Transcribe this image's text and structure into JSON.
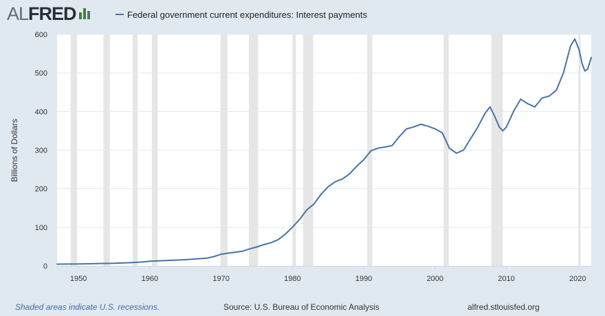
{
  "header": {
    "logo_left": "AL",
    "logo_right": "FRED",
    "logo_mark_icon": "fred-bar-chart-icon",
    "series_title": "Federal government current expenditures: Interest payments"
  },
  "footer": {
    "recession_note": "Shaded areas indicate U.S. recessions.",
    "source": "Source: U.S. Bureau of Economic Analysis",
    "site": "alfred.stlouisfed.org"
  },
  "colors": {
    "line": "#4572a7",
    "recession": "#e6e6e6",
    "gridline": "#e1e9f0",
    "plot_background": "#ffffff",
    "page_background": "#e1e9f0"
  },
  "chart_data": {
    "type": "line",
    "title": "Federal government current expenditures: Interest payments",
    "ylabel": "Billions of Dollars",
    "xlabel": "",
    "xlim": [
      1947,
      2021.9
    ],
    "ylim": [
      0,
      600
    ],
    "xticks": [
      "1950",
      "1960",
      "1970",
      "1980",
      "1990",
      "2000",
      "2010",
      "2020"
    ],
    "yticks": [
      "0",
      "100",
      "200",
      "300",
      "400",
      "500",
      "600"
    ],
    "grid": true,
    "recessions": [
      [
        1948.9,
        1949.8
      ],
      [
        1953.5,
        1954.4
      ],
      [
        1957.6,
        1958.3
      ],
      [
        1960.3,
        1961.1
      ],
      [
        1969.9,
        1970.9
      ],
      [
        1973.9,
        1975.2
      ],
      [
        1980.0,
        1980.5
      ],
      [
        1981.5,
        1982.9
      ],
      [
        1990.5,
        1991.2
      ],
      [
        2001.2,
        2001.9
      ],
      [
        2007.9,
        2009.5
      ],
      [
        2020.1,
        2020.4
      ]
    ],
    "series": [
      {
        "name": "Federal government current expenditures: Interest payments",
        "points": [
          [
            1947,
            4.5
          ],
          [
            1950,
            5
          ],
          [
            1955,
            6.5
          ],
          [
            1957,
            8
          ],
          [
            1958,
            9
          ],
          [
            1959,
            10
          ],
          [
            1960,
            12
          ],
          [
            1962,
            13.5
          ],
          [
            1965,
            16
          ],
          [
            1968,
            20
          ],
          [
            1969,
            24
          ],
          [
            1970,
            30
          ],
          [
            1971,
            33
          ],
          [
            1973,
            38
          ],
          [
            1974,
            44
          ],
          [
            1975,
            49
          ],
          [
            1976,
            55
          ],
          [
            1977,
            60
          ],
          [
            1978,
            68
          ],
          [
            1979,
            82
          ],
          [
            1980,
            100
          ],
          [
            1981,
            120
          ],
          [
            1982,
            145
          ],
          [
            1983,
            160
          ],
          [
            1984,
            185
          ],
          [
            1985,
            205
          ],
          [
            1986,
            218
          ],
          [
            1987,
            225
          ],
          [
            1988,
            238
          ],
          [
            1989,
            258
          ],
          [
            1990,
            275
          ],
          [
            1991,
            298
          ],
          [
            1992,
            305
          ],
          [
            1993,
            308
          ],
          [
            1994,
            312
          ],
          [
            1995,
            335
          ],
          [
            1996,
            355
          ],
          [
            1997,
            360
          ],
          [
            1998,
            367
          ],
          [
            1999,
            362
          ],
          [
            2000,
            355
          ],
          [
            2001,
            345
          ],
          [
            2002,
            305
          ],
          [
            2003,
            292
          ],
          [
            2004,
            300
          ],
          [
            2005,
            330
          ],
          [
            2006,
            360
          ],
          [
            2007,
            395
          ],
          [
            2007.7,
            412
          ],
          [
            2008.3,
            390
          ],
          [
            2009,
            360
          ],
          [
            2009.5,
            350
          ],
          [
            2010,
            360
          ],
          [
            2011,
            400
          ],
          [
            2012,
            432
          ],
          [
            2013,
            420
          ],
          [
            2014,
            412
          ],
          [
            2015,
            435
          ],
          [
            2016,
            440
          ],
          [
            2017,
            455
          ],
          [
            2018,
            500
          ],
          [
            2019,
            570
          ],
          [
            2019.6,
            588
          ],
          [
            2020.2,
            560
          ],
          [
            2020.6,
            525
          ],
          [
            2021,
            505
          ],
          [
            2021.4,
            510
          ],
          [
            2021.9,
            540
          ]
        ]
      }
    ]
  }
}
